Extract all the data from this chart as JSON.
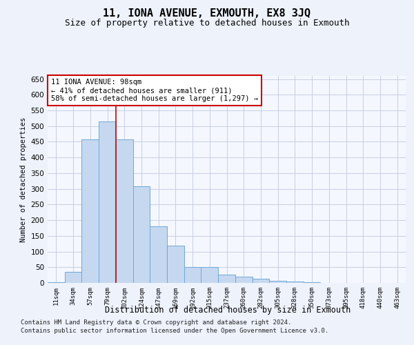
{
  "title": "11, IONA AVENUE, EXMOUTH, EX8 3JQ",
  "subtitle": "Size of property relative to detached houses in Exmouth",
  "xlabel": "Distribution of detached houses by size in Exmouth",
  "ylabel": "Number of detached properties",
  "bar_labels": [
    "11sqm",
    "34sqm",
    "57sqm",
    "79sqm",
    "102sqm",
    "124sqm",
    "147sqm",
    "169sqm",
    "192sqm",
    "215sqm",
    "237sqm",
    "260sqm",
    "282sqm",
    "305sqm",
    "328sqm",
    "350sqm",
    "373sqm",
    "395sqm",
    "418sqm",
    "440sqm",
    "463sqm"
  ],
  "bar_values": [
    3,
    35,
    457,
    515,
    457,
    307,
    180,
    118,
    50,
    50,
    27,
    20,
    13,
    7,
    5,
    2,
    1,
    1,
    0,
    0,
    0
  ],
  "bar_color": "#c5d8f0",
  "bar_edge_color": "#6fa8d6",
  "vline_color": "#cc0000",
  "vline_x_index": 4,
  "annotation_text": "11 IONA AVENUE: 98sqm\n← 41% of detached houses are smaller (911)\n58% of semi-detached houses are larger (1,297) →",
  "annotation_box_color": "#ffffff",
  "annotation_box_edge": "#cc0000",
  "ylim": [
    0,
    660
  ],
  "yticks": [
    0,
    50,
    100,
    150,
    200,
    250,
    300,
    350,
    400,
    450,
    500,
    550,
    600,
    650
  ],
  "bg_color": "#edf2fb",
  "plot_bg_color": "#f4f7fe",
  "grid_color": "#c0c8dd",
  "footer_line1": "Contains HM Land Registry data © Crown copyright and database right 2024.",
  "footer_line2": "Contains public sector information licensed under the Open Government Licence v3.0.",
  "title_fontsize": 11,
  "subtitle_fontsize": 9,
  "ylabel_fontsize": 7.5,
  "xlabel_fontsize": 8.5,
  "annotation_fontsize": 7.5,
  "tick_fontsize": 6.5,
  "ytick_fontsize": 7.5,
  "footer_fontsize": 6.5
}
